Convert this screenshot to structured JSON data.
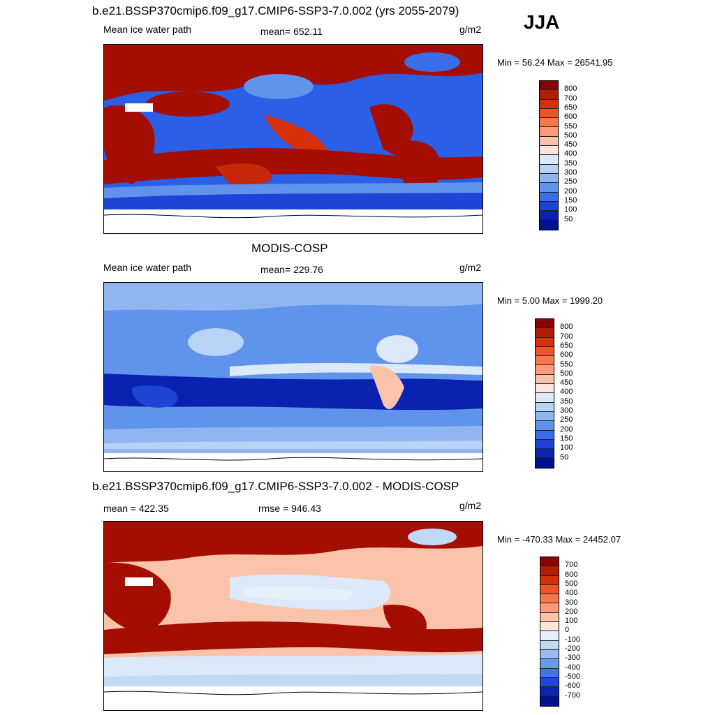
{
  "season": "JJA",
  "panels": [
    {
      "id": "model",
      "title": "b.e21.BSSP370cmip6.f09_g17.CMIP6-SSP3-7.0.002 (yrs 2055-2079)",
      "left_label": "Mean ice water path",
      "center_label": "mean= 652.11",
      "units": "g/m2",
      "minmax": "Min =  56.24 Max = 26541.95",
      "colorbar": {
        "labels": [
          "800",
          "700",
          "650",
          "600",
          "550",
          "500",
          "450",
          "400",
          "350",
          "300",
          "250",
          "200",
          "150",
          "100",
          "50"
        ],
        "colors": [
          "#8b0000",
          "#b01c05",
          "#d6300a",
          "#ee5424",
          "#f7764a",
          "#fb9b7a",
          "#fbc3aa",
          "#fde6d9",
          "#dbe9f8",
          "#b7d3f5",
          "#8fb6f0",
          "#5f93ec",
          "#3a6ee8",
          "#1f44d5",
          "#0a22b0",
          "#00138a"
        ]
      }
    },
    {
      "id": "obs",
      "title": "MODIS-COSP",
      "left_label": "Mean ice water path",
      "center_label": "mean= 229.76",
      "units": "g/m2",
      "minmax": "Min =   5.00 Max = 1999.20",
      "colorbar": {
        "labels": [
          "800",
          "700",
          "650",
          "600",
          "550",
          "500",
          "450",
          "400",
          "350",
          "300",
          "250",
          "200",
          "150",
          "100",
          "50"
        ],
        "colors": [
          "#8b0000",
          "#b01c05",
          "#d6300a",
          "#ee5424",
          "#f7764a",
          "#fb9b7a",
          "#fbc3aa",
          "#fde6d9",
          "#dbe9f8",
          "#b7d3f5",
          "#8fb6f0",
          "#5f93ec",
          "#3a6ee8",
          "#1f44d5",
          "#0a22b0",
          "#00138a"
        ]
      }
    },
    {
      "id": "diff",
      "title": "b.e21.BSSP370cmip6.f09_g17.CMIP6-SSP3-7.0.002 - MODIS-COSP",
      "left_label": "mean = 422.35",
      "center_label": "rmse = 946.43",
      "units": "g/m2",
      "minmax": "Min = -470.33 Max = 24452.07",
      "colorbar": {
        "labels": [
          "700",
          "600",
          "500",
          "400",
          "300",
          "200",
          "100",
          "0",
          "-100",
          "-200",
          "-300",
          "-400",
          "-500",
          "-600",
          "-700"
        ],
        "colors": [
          "#8b0000",
          "#b01c05",
          "#d6300a",
          "#ee5424",
          "#f7764a",
          "#fb9b7a",
          "#fbc3aa",
          "#fde6d9",
          "#e6f0fb",
          "#c2d9f5",
          "#98bcef",
          "#6a9aeb",
          "#3f73e6",
          "#1f48d6",
          "#0a24b0",
          "#00138a"
        ]
      }
    }
  ]
}
